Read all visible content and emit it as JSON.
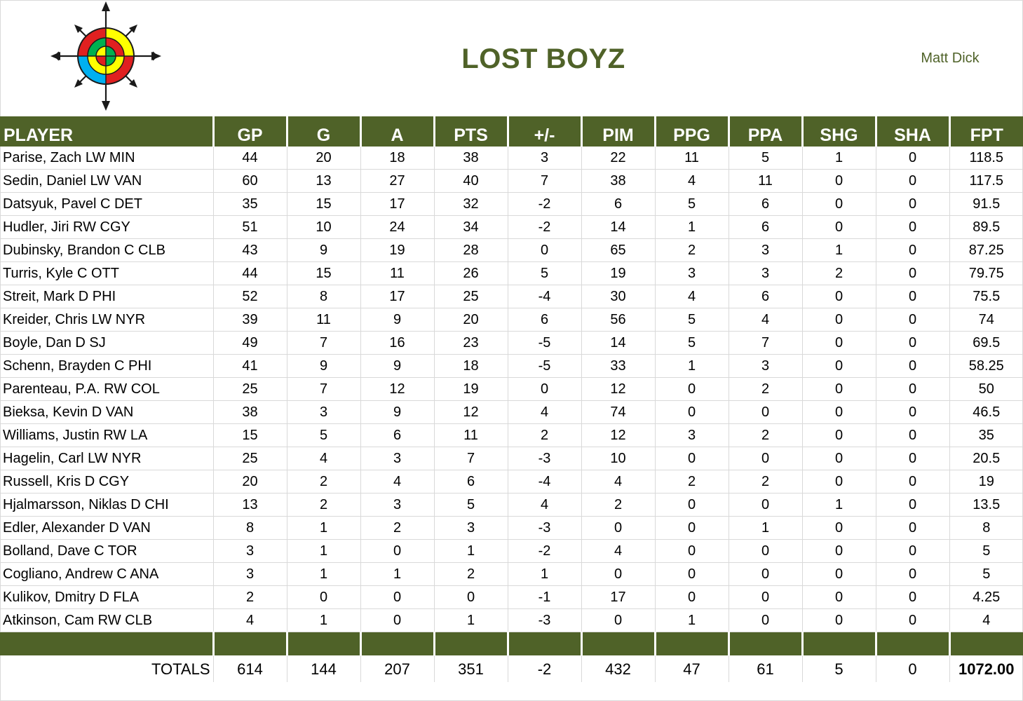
{
  "team_name": "LOST BOYZ",
  "owner": "Matt Dick",
  "logo_icon": "compass-target-icon",
  "colors": {
    "header_green": "#4f6228",
    "title_green": "#4f6228"
  },
  "columns": [
    "PLAYER",
    "GP",
    "G",
    "A",
    "PTS",
    "+/-",
    "PIM",
    "PPG",
    "PPA",
    "SHG",
    "SHA",
    "FPT"
  ],
  "players": [
    [
      "Parise, Zach LW MIN",
      "44",
      "20",
      "18",
      "38",
      "3",
      "22",
      "11",
      "5",
      "1",
      "0",
      "118.5"
    ],
    [
      "Sedin, Daniel LW VAN",
      "60",
      "13",
      "27",
      "40",
      "7",
      "38",
      "4",
      "11",
      "0",
      "0",
      "117.5"
    ],
    [
      "Datsyuk, Pavel C DET",
      "35",
      "15",
      "17",
      "32",
      "-2",
      "6",
      "5",
      "6",
      "0",
      "0",
      "91.5"
    ],
    [
      "Hudler, Jiri RW CGY",
      "51",
      "10",
      "24",
      "34",
      "-2",
      "14",
      "1",
      "6",
      "0",
      "0",
      "89.5"
    ],
    [
      "Dubinsky, Brandon C CLB",
      "43",
      "9",
      "19",
      "28",
      "0",
      "65",
      "2",
      "3",
      "1",
      "0",
      "87.25"
    ],
    [
      "Turris, Kyle C OTT",
      "44",
      "15",
      "11",
      "26",
      "5",
      "19",
      "3",
      "3",
      "2",
      "0",
      "79.75"
    ],
    [
      "Streit, Mark D PHI",
      "52",
      "8",
      "17",
      "25",
      "-4",
      "30",
      "4",
      "6",
      "0",
      "0",
      "75.5"
    ],
    [
      "Kreider, Chris LW NYR",
      "39",
      "11",
      "9",
      "20",
      "6",
      "56",
      "5",
      "4",
      "0",
      "0",
      "74"
    ],
    [
      "Boyle, Dan D SJ",
      "49",
      "7",
      "16",
      "23",
      "-5",
      "14",
      "5",
      "7",
      "0",
      "0",
      "69.5"
    ],
    [
      "Schenn, Brayden C PHI",
      "41",
      "9",
      "9",
      "18",
      "-5",
      "33",
      "1",
      "3",
      "0",
      "0",
      "58.25"
    ],
    [
      "Parenteau, P.A. RW COL",
      "25",
      "7",
      "12",
      "19",
      "0",
      "12",
      "0",
      "2",
      "0",
      "0",
      "50"
    ],
    [
      "Bieksa, Kevin D VAN",
      "38",
      "3",
      "9",
      "12",
      "4",
      "74",
      "0",
      "0",
      "0",
      "0",
      "46.5"
    ],
    [
      "Williams, Justin RW LA",
      "15",
      "5",
      "6",
      "11",
      "2",
      "12",
      "3",
      "2",
      "0",
      "0",
      "35"
    ],
    [
      "Hagelin, Carl LW NYR",
      "25",
      "4",
      "3",
      "7",
      "-3",
      "10",
      "0",
      "0",
      "0",
      "0",
      "20.5"
    ],
    [
      "Russell, Kris D CGY",
      "20",
      "2",
      "4",
      "6",
      "-4",
      "4",
      "2",
      "2",
      "0",
      "0",
      "19"
    ],
    [
      "Hjalmarsson, Niklas D CHI",
      "13",
      "2",
      "3",
      "5",
      "4",
      "2",
      "0",
      "0",
      "1",
      "0",
      "13.5"
    ],
    [
      "Edler, Alexander D VAN",
      "8",
      "1",
      "2",
      "3",
      "-3",
      "0",
      "0",
      "1",
      "0",
      "0",
      "8"
    ],
    [
      "Bolland, Dave C TOR",
      "3",
      "1",
      "0",
      "1",
      "-2",
      "4",
      "0",
      "0",
      "0",
      "0",
      "5"
    ],
    [
      "Cogliano, Andrew C ANA",
      "3",
      "1",
      "1",
      "2",
      "1",
      "0",
      "0",
      "0",
      "0",
      "0",
      "5"
    ],
    [
      "Kulikov, Dmitry D FLA",
      "2",
      "0",
      "0",
      "0",
      "-1",
      "17",
      "0",
      "0",
      "0",
      "0",
      "4.25"
    ],
    [
      "Atkinson, Cam RW CLB",
      "4",
      "1",
      "0",
      "1",
      "-3",
      "0",
      "1",
      "0",
      "0",
      "0",
      "4"
    ]
  ],
  "totals": [
    "TOTALS",
    "614",
    "144",
    "207",
    "351",
    "-2",
    "432",
    "47",
    "61",
    "5",
    "0",
    "1072.00"
  ]
}
